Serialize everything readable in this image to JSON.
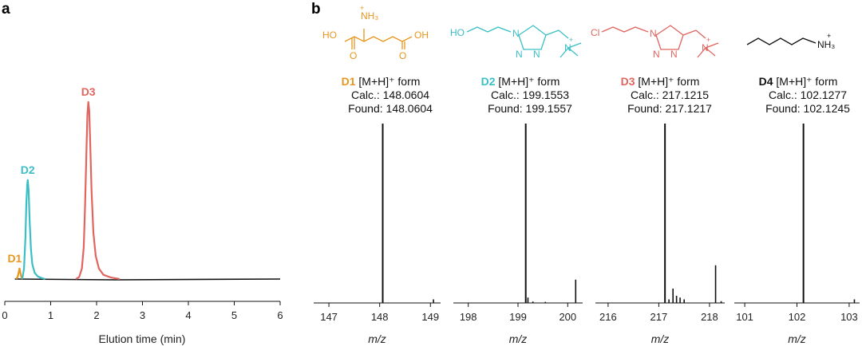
{
  "colors": {
    "D1": "#e8961e",
    "D2": "#3bbfc6",
    "D3": "#e0655f",
    "D4": "#111111",
    "baseline": "#111111"
  },
  "panel_labels": {
    "a": "a",
    "b": "b"
  },
  "structures": {
    "D1": {
      "atoms": [
        "NH₃",
        "+",
        "HO",
        "O",
        "OH",
        "O"
      ]
    },
    "D2": {
      "atoms": [
        "HO",
        "N",
        "N",
        "N",
        "N",
        "+"
      ]
    },
    "D3": {
      "atoms": [
        "Cl",
        "N",
        "N",
        "N",
        "N",
        "+"
      ]
    },
    "D4": {
      "atoms": [
        "NH₃",
        "+"
      ]
    }
  },
  "chart_data": [
    {
      "type": "line",
      "panel": "a",
      "xlabel": "Elution time (min)",
      "ylabel": "",
      "xlim": [
        0,
        6
      ],
      "xticks": [
        "0",
        "1",
        "2",
        "3",
        "4",
        "5",
        "6"
      ],
      "ylim": [
        0,
        1.1
      ],
      "grid": false,
      "peaks": [
        {
          "name": "D1",
          "time": 0.32,
          "height": 0.05
        },
        {
          "name": "D2",
          "time": 0.5,
          "height": 0.47
        },
        {
          "name": "D3",
          "time": 1.82,
          "height": 0.84
        }
      ],
      "series": [
        {
          "name": "D1",
          "x": [
            0.25,
            0.28,
            0.3,
            0.32,
            0.34,
            0.36,
            0.38
          ],
          "y": [
            0.0,
            0.01,
            0.03,
            0.05,
            0.03,
            0.01,
            0.0
          ]
        },
        {
          "name": "D2",
          "x": [
            0.38,
            0.42,
            0.45,
            0.47,
            0.49,
            0.5,
            0.52,
            0.54,
            0.57,
            0.6,
            0.65,
            0.72,
            0.8,
            0.88
          ],
          "y": [
            0.0,
            0.05,
            0.2,
            0.36,
            0.45,
            0.47,
            0.42,
            0.28,
            0.14,
            0.07,
            0.03,
            0.012,
            0.005,
            0.0
          ]
        },
        {
          "name": "D3",
          "x": [
            1.55,
            1.62,
            1.68,
            1.72,
            1.75,
            1.78,
            1.8,
            1.82,
            1.84,
            1.86,
            1.89,
            1.93,
            1.98,
            2.05,
            2.15,
            2.3,
            2.5
          ],
          "y": [
            0.0,
            0.01,
            0.05,
            0.15,
            0.35,
            0.62,
            0.78,
            0.84,
            0.8,
            0.65,
            0.42,
            0.22,
            0.11,
            0.05,
            0.02,
            0.008,
            0.0
          ]
        }
      ]
    },
    {
      "type": "bar",
      "panel": "b",
      "compound": "D1",
      "label_name": "D1",
      "form": "[M+H]⁺ form",
      "calc_label": "Calc.: 148.0604",
      "found_label": "Found: 148.0604",
      "xlabel": "m/z",
      "xlim": [
        146.7,
        149.2
      ],
      "xticks": [
        147,
        148,
        149
      ],
      "x": [
        148.0604,
        149.06
      ],
      "values": [
        1.0,
        0.02
      ]
    },
    {
      "type": "bar",
      "panel": "b",
      "compound": "D2",
      "label_name": "D2",
      "form": "[M+H]⁺ form",
      "calc_label": "Calc.: 199.1553",
      "found_label": "Found: 199.1557",
      "xlabel": "m/z",
      "xlim": [
        197.7,
        200.3
      ],
      "xticks": [
        198,
        199,
        200
      ],
      "x": [
        199.1557,
        199.2,
        199.3,
        199.55,
        200.16
      ],
      "values": [
        1.0,
        0.03,
        0.008,
        0.006,
        0.13
      ]
    },
    {
      "type": "bar",
      "panel": "b",
      "compound": "D3",
      "label_name": "D3",
      "form": "[M+H]⁺ form",
      "calc_label": "Calc.: 217.1215",
      "found_label": "Found: 217.1217",
      "xlabel": "m/z",
      "xlim": [
        215.75,
        218.3
      ],
      "xticks": [
        216,
        217,
        218
      ],
      "x": [
        217.1217,
        217.2,
        217.28,
        217.35,
        217.42,
        217.5,
        218.12,
        218.23
      ],
      "values": [
        1.0,
        0.02,
        0.08,
        0.04,
        0.03,
        0.02,
        0.21,
        0.01
      ]
    },
    {
      "type": "bar",
      "panel": "b",
      "compound": "D4",
      "label_name": "D4",
      "form": "[M+H]⁺ form",
      "calc_label": "Calc.: 102.1277",
      "found_label": "Found: 102.1245",
      "xlabel": "m/z",
      "xlim": [
        100.8,
        103.2
      ],
      "xticks": [
        101,
        102,
        103
      ],
      "x": [
        102.1245,
        103.1
      ],
      "values": [
        1.0,
        0.02
      ]
    }
  ]
}
